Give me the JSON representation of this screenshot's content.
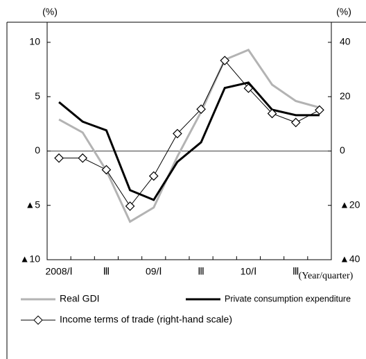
{
  "chart_data": {
    "type": "line",
    "y_unit": "(%)",
    "y2_unit": "(%)",
    "x_label": "(Year/quarter)",
    "categories": [
      "2008/Ⅰ",
      null,
      "Ⅲ",
      null,
      "09/Ⅰ",
      null,
      "Ⅲ",
      null,
      "10/Ⅰ",
      null,
      "Ⅲ",
      null
    ],
    "ylim": [
      -10,
      11.85
    ],
    "yticks": [
      {
        "value": -10,
        "label": "▲10"
      },
      {
        "value": -5,
        "label": "▲5"
      },
      0,
      5,
      10
    ],
    "y2lim": [
      -40,
      47.4
    ],
    "y2ticks": [
      {
        "value": -40,
        "label": "▲40"
      },
      {
        "value": -20,
        "label": "▲20"
      },
      0,
      20,
      40
    ],
    "series": [
      {
        "name": "Real GDI",
        "color": "#b3b3b3",
        "values": [
          2.9,
          1.7,
          -1.8,
          -6.5,
          -5.2,
          -0.5,
          3.6,
          8.4,
          9.3,
          6.1,
          4.6,
          4.0
        ]
      },
      {
        "name": "Private consumption expenditure",
        "color": "#000000",
        "values": [
          4.5,
          2.7,
          1.9,
          -3.6,
          -4.5,
          -1.0,
          0.8,
          5.8,
          6.3,
          3.8,
          3.3,
          3.3
        ]
      },
      {
        "name": "Income terms of trade (right-hand scale)",
        "color": "#000000",
        "axis": "y2",
        "marker": "diamond",
        "values": [
          -2.6,
          -2.6,
          -6.9,
          -20.3,
          -9.2,
          6.4,
          15.4,
          33.3,
          23.1,
          13.8,
          10.5,
          15.1
        ]
      }
    ]
  }
}
